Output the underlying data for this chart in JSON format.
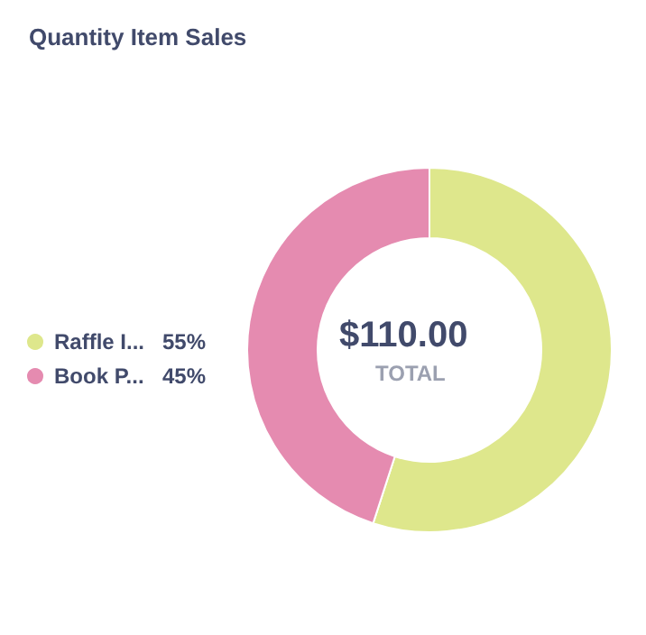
{
  "chart_data": {
    "type": "donut",
    "title": "Quantity Item Sales",
    "categories": [
      "Raffle I...",
      "Book P..."
    ],
    "values": [
      55,
      45
    ],
    "colors": [
      "#dee78c",
      "#e58bb0"
    ],
    "annotations": [
      "$110.00",
      "TOTAL"
    ],
    "value_labels": [
      "55%",
      "45%"
    ],
    "legend": "left"
  }
}
